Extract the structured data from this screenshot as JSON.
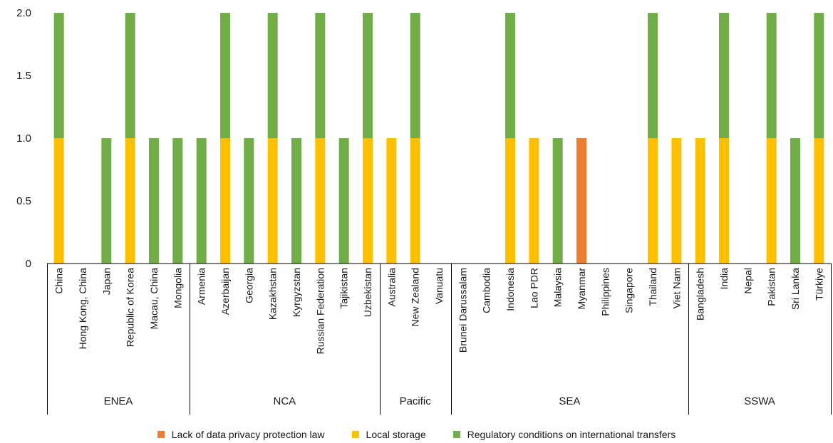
{
  "chart_data": {
    "type": "bar",
    "stacked": true,
    "ylim": [
      0,
      2
    ],
    "yticks": [
      "0",
      "0.5",
      "1.0",
      "1.5",
      "2.0"
    ],
    "grid": false,
    "legend_position": "bottom",
    "categories": [
      "China",
      "Hong Kong, China",
      "Japan",
      "Republic of Korea",
      "Macau, China",
      "Mongolia",
      "Armenia",
      "Azerbaijan",
      "Georgia",
      "Kazakhstan",
      "Kyrgyzstan",
      "Russian Federation",
      "Tajikistan",
      "Uzbekistan",
      "Australia",
      "New Zealand",
      "Vanuatu",
      "Brunei Darussalam",
      "Cambodia",
      "Indonesia",
      "Lao PDR",
      "Malaysia",
      "Myanmar",
      "Philippines",
      "Singapore",
      "Thailand",
      "Viet Nam",
      "Bangladesh",
      "India",
      "Nepal",
      "Pakistan",
      "Sri Lanka",
      "Türkiye"
    ],
    "groups": [
      {
        "name": "ENEA",
        "count": 6
      },
      {
        "name": "NCA",
        "count": 8
      },
      {
        "name": "Pacific",
        "count": 3
      },
      {
        "name": "SEA",
        "count": 10
      },
      {
        "name": "SSWA",
        "count": 6
      }
    ],
    "series": [
      {
        "name": "Lack of data privacy protection law",
        "color": "#ED7D31",
        "values": [
          0,
          0,
          0,
          0,
          0,
          0,
          0,
          0,
          0,
          0,
          0,
          0,
          0,
          0,
          0,
          0,
          0,
          0,
          0,
          0,
          0,
          0,
          1,
          0,
          0,
          0,
          0,
          0,
          0,
          0,
          0,
          0,
          0
        ]
      },
      {
        "name": "Local storage",
        "color": "#FFC000",
        "values": [
          1,
          0,
          0,
          1,
          0,
          0,
          0,
          1,
          0,
          1,
          0,
          1,
          0,
          1,
          1,
          1,
          0,
          0,
          0,
          1,
          1,
          0,
          0,
          0,
          0,
          1,
          1,
          1,
          1,
          0,
          1,
          0,
          1
        ]
      },
      {
        "name": "Regulatory conditions on international transfers",
        "color": "#70AD47",
        "values": [
          1,
          0,
          1,
          1,
          1,
          1,
          1,
          1,
          1,
          1,
          1,
          1,
          1,
          1,
          0,
          1,
          0,
          0,
          0,
          1,
          0,
          1,
          0,
          0,
          0,
          1,
          0,
          0,
          1,
          0,
          1,
          1,
          1
        ]
      }
    ]
  }
}
